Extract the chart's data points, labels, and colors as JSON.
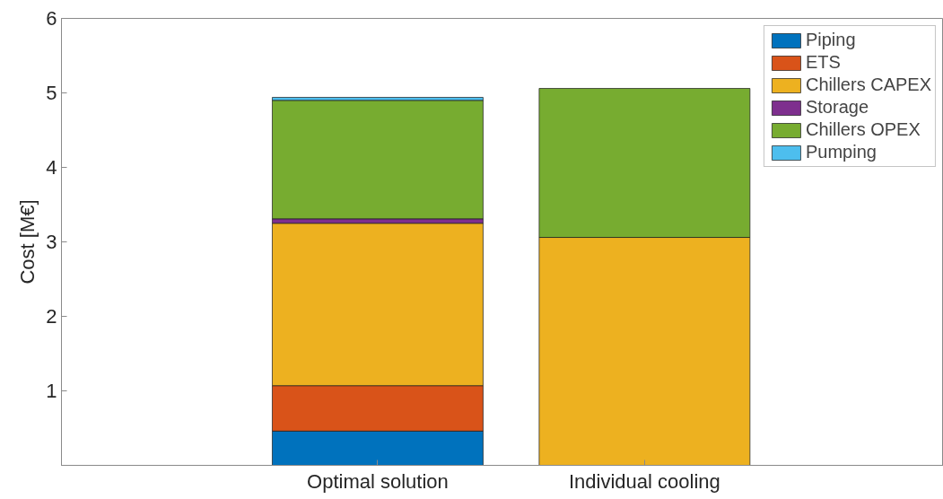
{
  "chart_data": {
    "type": "bar",
    "stacked": true,
    "ylabel": "Cost [M€]",
    "categories": [
      "Optimal solution",
      "Individual cooling"
    ],
    "series": [
      {
        "name": "Piping",
        "color": "#0072bd",
        "values": [
          0.46,
          0
        ]
      },
      {
        "name": "ETS",
        "color": "#d95319",
        "values": [
          0.61,
          0
        ]
      },
      {
        "name": "Chillers CAPEX",
        "color": "#edb120",
        "values": [
          2.18,
          3.06
        ]
      },
      {
        "name": "Storage",
        "color": "#7e2f8e",
        "values": [
          0.06,
          0
        ]
      },
      {
        "name": "Chillers OPEX",
        "color": "#77ac30",
        "values": [
          1.59,
          2.0
        ]
      },
      {
        "name": "Pumping",
        "color": "#4dbeee",
        "values": [
          0.04,
          0
        ]
      }
    ],
    "ylim": [
      0,
      6
    ],
    "yticks": [
      {
        "value": 0,
        "label": null
      },
      1,
      2,
      3,
      4,
      5,
      6
    ],
    "legend": "top right",
    "grid": false
  }
}
